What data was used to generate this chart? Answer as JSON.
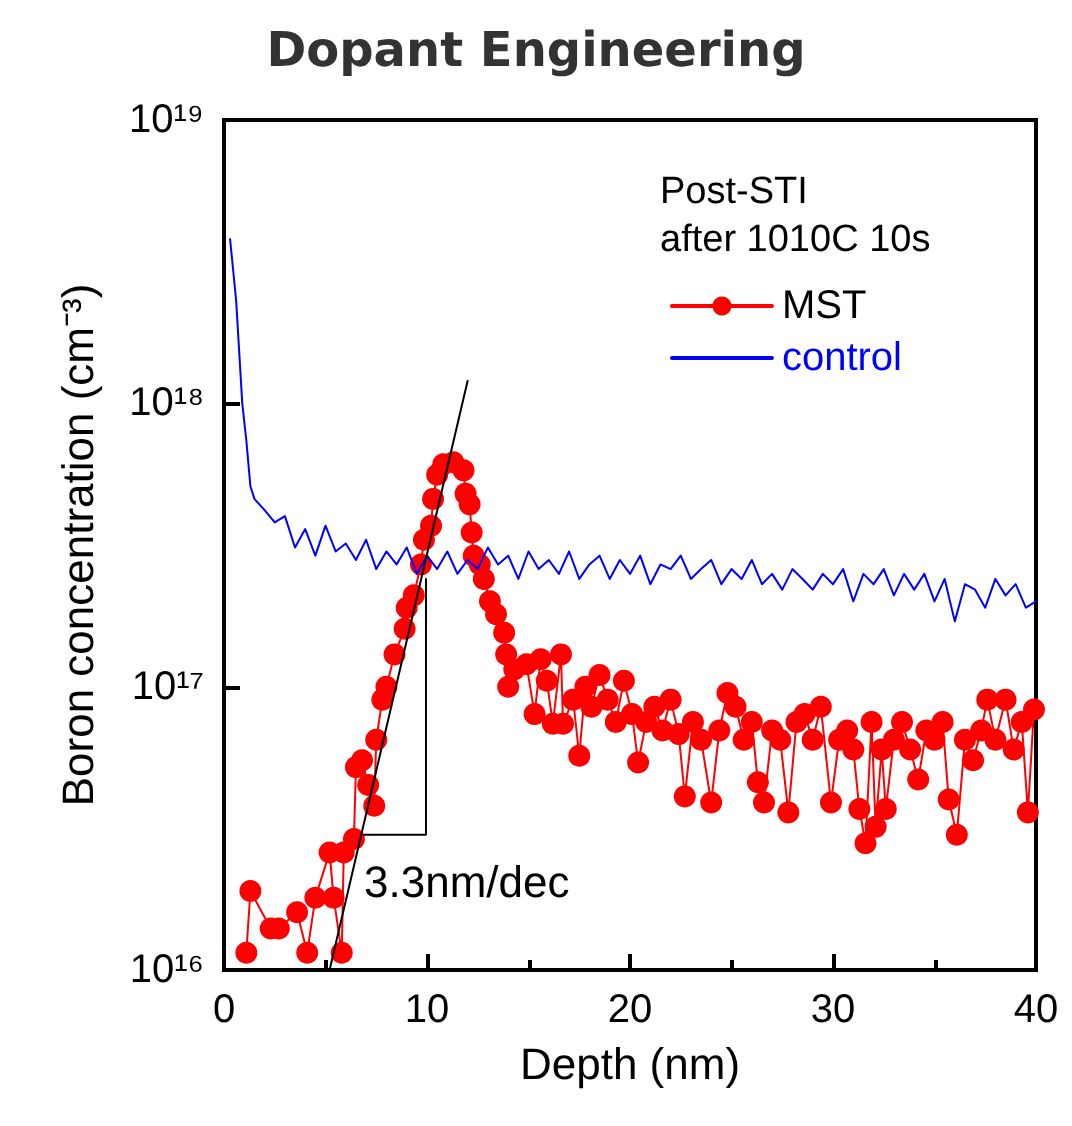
{
  "chart_data": {
    "type": "line",
    "title": "Dopant Engineering",
    "xlabel": "Depth (nm)",
    "ylabel": "Boron concentration (cm⁻³)",
    "legend_title": "Post-STI\nafter 1010C 10s",
    "xlim": [
      0,
      40
    ],
    "xticks": [
      0,
      10,
      20,
      30,
      40
    ],
    "ylim": [
      1e+16,
      1e+19
    ],
    "yticks": [
      {
        "value": 1e+16,
        "label": "10¹⁶"
      },
      {
        "value": 1e+17,
        "label": "10¹⁷"
      },
      {
        "value": 1e+18,
        "label": "10¹⁸"
      },
      {
        "value": 1e+19,
        "label": "10¹⁹"
      }
    ],
    "log": "y",
    "grid": false,
    "legend": "top right",
    "annotations": [
      "3.3nm/dec"
    ],
    "series": [
      {
        "name": "MST",
        "color": "#ff0000",
        "marker": "circle",
        "x": [
          1.1,
          1.3,
          2.3,
          2.7,
          3.6,
          4.1,
          4.5,
          5.2,
          5.4,
          5.8,
          5.9,
          6.4,
          6.5,
          6.8,
          7.1,
          7.4,
          7.5,
          7.8,
          8.0,
          8.4,
          8.9,
          9.0,
          9.35,
          9.7,
          9.85,
          10.2,
          10.3,
          10.5,
          10.8,
          11.3,
          11.8,
          11.9,
          12.1,
          12.2,
          12.3,
          12.6,
          12.8,
          13.1,
          13.4,
          13.8,
          13.9,
          14.0,
          14.3,
          14.9,
          15.3,
          15.6,
          15.9,
          16.2,
          16.6,
          16.7,
          17.2,
          17.5,
          17.8,
          18.1,
          18.5,
          18.9,
          19.3,
          19.7,
          20.1,
          20.4,
          20.8,
          21.2,
          21.6,
          22.0,
          22.4,
          22.7,
          23.1,
          23.5,
          24.0,
          24.4,
          24.8,
          25.2,
          25.6,
          26.0,
          26.3,
          26.6,
          27.0,
          27.4,
          27.8,
          28.2,
          28.6,
          29.0,
          29.4,
          29.9,
          30.3,
          30.7,
          31.0,
          31.3,
          31.6,
          31.9,
          32.1,
          32.4,
          32.6,
          33.0,
          33.4,
          33.8,
          34.2,
          34.6,
          35.0,
          35.4,
          35.7,
          36.1,
          36.5,
          36.9,
          37.3,
          37.6,
          38.0,
          38.5,
          38.9,
          39.3,
          39.6,
          39.9
        ],
        "values": [
          1.15e+16,
          1.9e+16,
          1.4e+16,
          1.4e+16,
          1.6e+16,
          1.15e+16,
          1.8e+16,
          2.6e+16,
          1.8e+16,
          1.15e+16,
          2.6e+16,
          2.9e+16,
          5.2e+16,
          5.5e+16,
          4.5e+16,
          3.8e+16,
          6.5e+16,
          9e+16,
          1e+17,
          1.3e+17,
          1.6e+17,
          1.9e+17,
          2.1e+17,
          2.7e+17,
          3.3e+17,
          3.7e+17,
          4.6e+17,
          5.6e+17,
          6.1e+17,
          6.2e+17,
          5.8e+17,
          4.8e+17,
          4.4e+17,
          3.5e+17,
          2.9e+17,
          2.7e+17,
          2.4e+17,
          2e+17,
          1.8e+17,
          1.55e+17,
          1.3e+17,
          1e+17,
          1.15e+17,
          1.2e+17,
          8e+16,
          1.25e+17,
          1.05e+17,
          7.4e+16,
          1.3e+17,
          7.4e+16,
          9e+16,
          5.7e+16,
          1e+17,
          8.5e+16,
          1.1e+17,
          9e+16,
          7.5e+16,
          1.05e+17,
          8e+16,
          5.4e+16,
          7.5e+16,
          8.5e+16,
          7e+16,
          9e+16,
          6.8e+16,
          4.1e+16,
          7.5e+16,
          6.5e+16,
          3.9e+16,
          7e+16,
          9.5e+16,
          8.5e+16,
          6.5e+16,
          7.5e+16,
          4.6e+16,
          3.9e+16,
          7e+16,
          6.5e+16,
          3.6e+16,
          7.5e+16,
          8e+16,
          6.5e+16,
          8.5e+16,
          3.9e+16,
          6.5e+16,
          7e+16,
          6e+16,
          3.7e+16,
          2.8e+16,
          7.5e+16,
          3.2e+16,
          6e+16,
          3.7e+16,
          6.5e+16,
          7.5e+16,
          6e+16,
          4.7e+16,
          7e+16,
          6.5e+16,
          7.5e+16,
          4e+16,
          3e+16,
          6.5e+16,
          5.5e+16,
          7e+16,
          9e+16,
          6.5e+16,
          9e+16,
          6e+16,
          7.5e+16,
          3.6e+16,
          8.3e+16
        ]
      },
      {
        "name": "control",
        "color": "#0000ff",
        "marker": "none",
        "x": [
          0.3,
          0.6,
          0.9,
          1.1,
          1.3,
          1.5,
          2.0,
          2.5,
          3.0,
          3.5,
          4.0,
          4.5,
          5.0,
          5.5,
          6.0,
          6.5,
          7.0,
          7.5,
          8.0,
          8.5,
          9.0,
          9.5,
          10.0,
          10.5,
          11.0,
          11.5,
          12.0,
          12.5,
          13.0,
          13.5,
          14.0,
          14.5,
          15.0,
          15.5,
          16.0,
          16.5,
          17.0,
          17.5,
          18.0,
          18.5,
          19.0,
          19.5,
          20.0,
          20.5,
          21.0,
          21.5,
          22.0,
          22.5,
          23.0,
          23.5,
          24.0,
          24.5,
          25.0,
          25.5,
          26.0,
          26.5,
          27.0,
          27.5,
          28.0,
          28.5,
          29.0,
          29.5,
          30.0,
          30.5,
          31.0,
          31.5,
          32.0,
          32.5,
          33.0,
          33.5,
          34.0,
          34.5,
          35.0,
          35.5,
          36.0,
          36.5,
          37.0,
          37.5,
          38.0,
          38.5,
          39.0,
          39.5,
          40.0
        ],
        "values": [
          3.8e+18,
          2.3e+18,
          1e+18,
          7.4e+17,
          5.1e+17,
          4.6e+17,
          4.2e+17,
          3.8e+17,
          4e+17,
          3.1e+17,
          3.6e+17,
          2.9e+17,
          3.7e+17,
          3e+17,
          3.2e+17,
          2.8e+17,
          3.3e+17,
          2.6e+17,
          3e+17,
          2.7e+17,
          3.1e+17,
          2.5e+17,
          2.9e+17,
          2.6e+17,
          3e+17,
          2.5e+17,
          2.8e+17,
          2.6e+17,
          3.1e+17,
          2.7e+17,
          2.9e+17,
          2.4e+17,
          3e+17,
          2.6e+17,
          2.8e+17,
          2.5e+17,
          3e+17,
          2.4e+17,
          2.7e+17,
          2.9e+17,
          2.4e+17,
          2.8e+17,
          2.5e+17,
          2.9e+17,
          2.3e+17,
          2.7e+17,
          2.6e+17,
          2.9e+17,
          2.4e+17,
          2.6e+17,
          2.8e+17,
          2.3e+17,
          2.6e+17,
          2.4e+17,
          2.8e+17,
          2.3e+17,
          2.5e+17,
          2.2e+17,
          2.6e+17,
          2.4e+17,
          2.2e+17,
          2.5e+17,
          2.3e+17,
          2.6e+17,
          2e+17,
          2.5e+17,
          2.3e+17,
          2.6e+17,
          2.1e+17,
          2.5e+17,
          2.2e+17,
          2.5e+17,
          2e+17,
          2.4e+17,
          1.7e+17,
          2.3e+17,
          2.2e+17,
          1.9e+17,
          2.4e+17,
          2.1e+17,
          2.3e+17,
          1.9e+17,
          2e+17
        ]
      },
      {
        "color": "#000000",
        "marker": "none",
        "x": [
          5.2,
          12.0
        ],
        "values": [
          1e+16,
          1.2e+18
        ]
      },
      {
        "color": "#000000",
        "marker": "none",
        "x": [
          6.9,
          9.95,
          9.95
        ],
        "values": [
          3e+16,
          3e+16,
          2.4e+17
        ]
      }
    ]
  }
}
